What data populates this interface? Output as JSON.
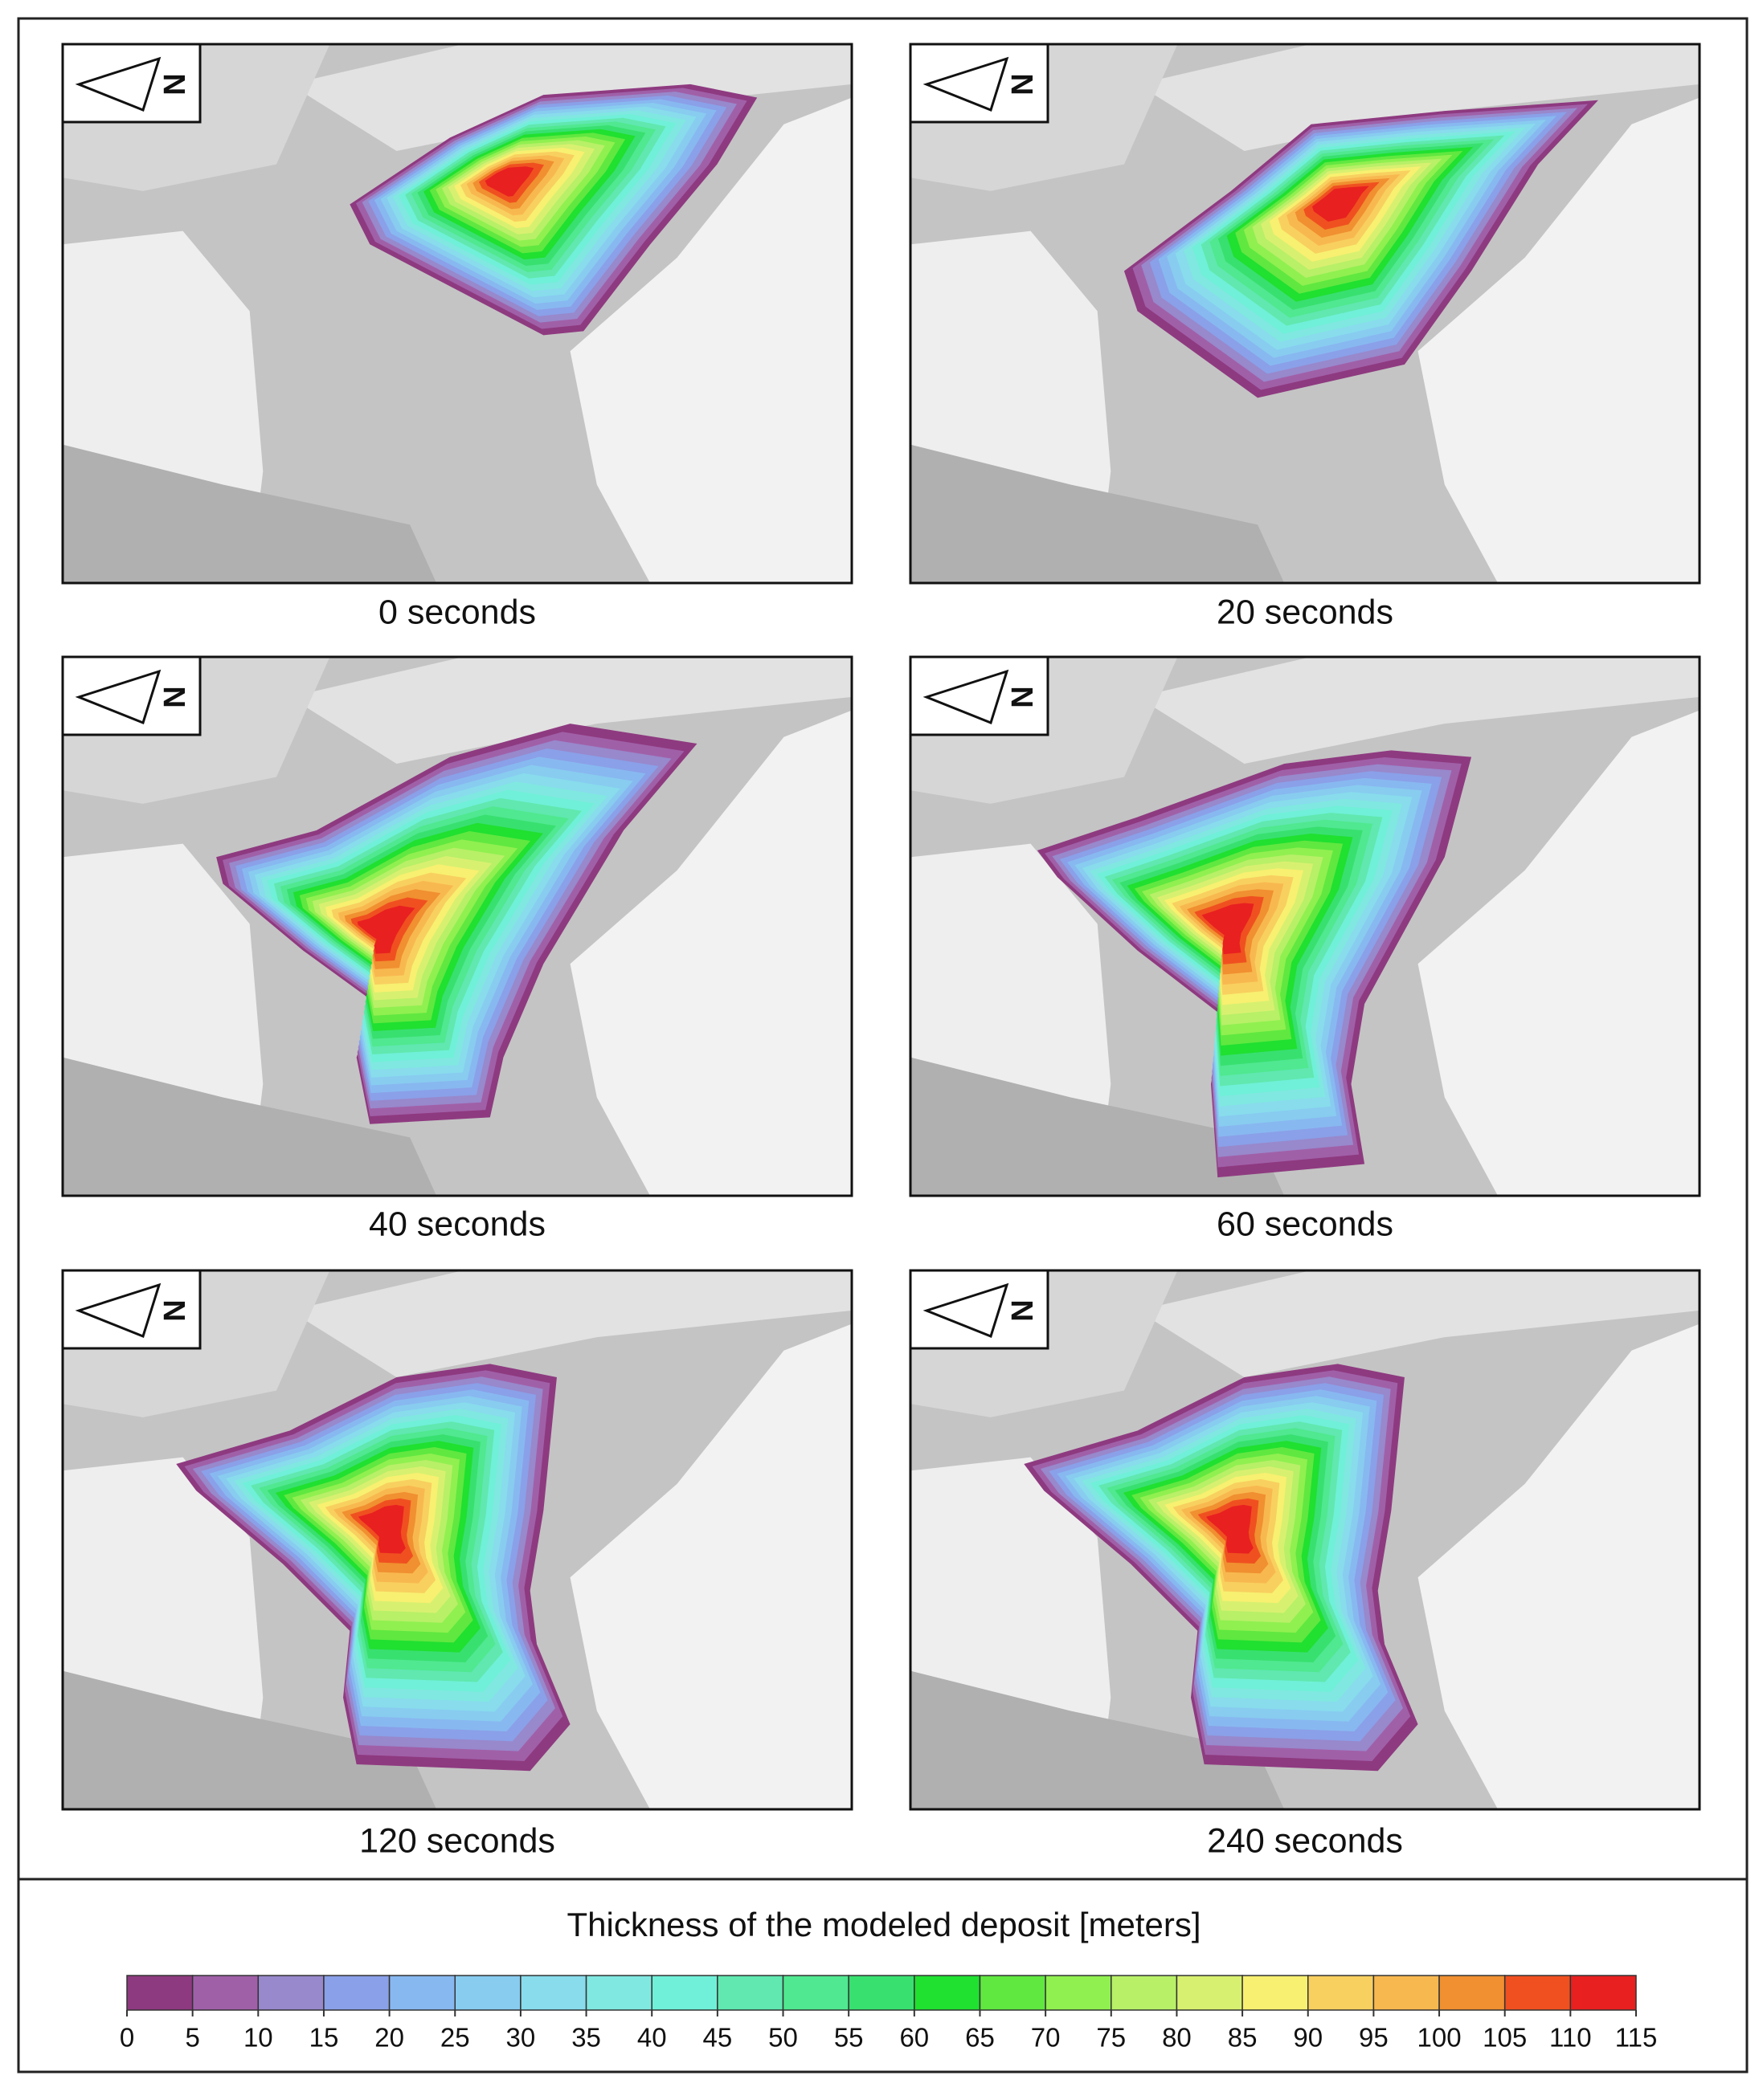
{
  "panels": [
    {
      "label": "0 seconds",
      "north": "N"
    },
    {
      "label": "20 seconds",
      "north": "N"
    },
    {
      "label": "40 seconds",
      "north": "N"
    },
    {
      "label": "60 seconds",
      "north": "N"
    },
    {
      "label": "120 seconds",
      "north": "N"
    },
    {
      "label": "240 seconds",
      "north": "N"
    }
  ],
  "legend": {
    "title": "Thickness of the modeled deposit [meters]",
    "bins": [
      0,
      5,
      10,
      15,
      20,
      25,
      30,
      35,
      40,
      45,
      50,
      55,
      60,
      65,
      70,
      75,
      80,
      85,
      90,
      95,
      100,
      105,
      110,
      115
    ],
    "colors": [
      "#8e3a80",
      "#a060a8",
      "#9888cc",
      "#8aa0e8",
      "#88b8f0",
      "#88ccf0",
      "#88dcec",
      "#80e8e0",
      "#70f0d8",
      "#60e8b0",
      "#50e890",
      "#38e070",
      "#20e030",
      "#60e840",
      "#90f050",
      "#b8f068",
      "#d8f070",
      "#f8f070",
      "#f8d060",
      "#f8b850",
      "#f09030",
      "#f05020",
      "#e82020"
    ]
  }
}
